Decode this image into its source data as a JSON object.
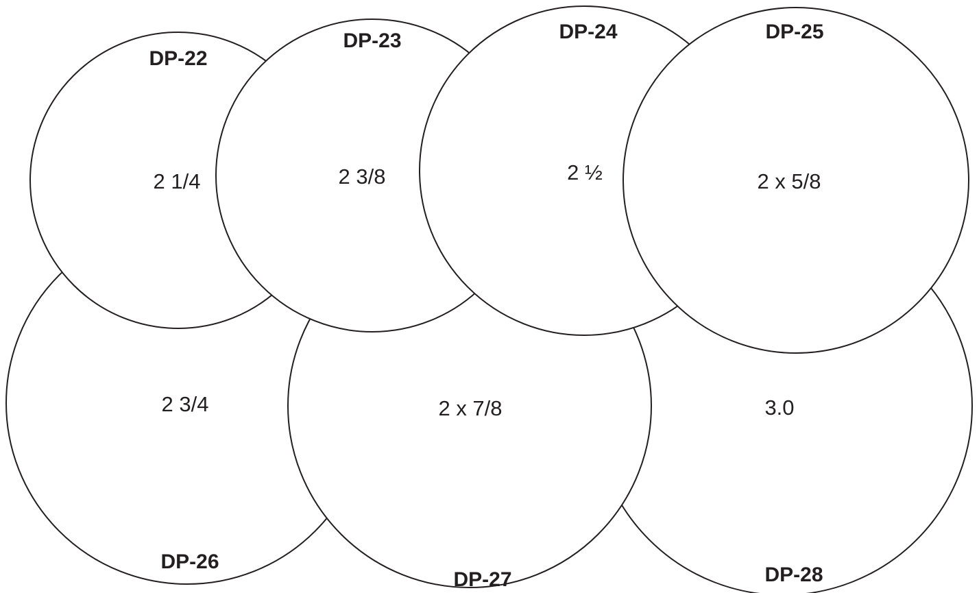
{
  "diagram": {
    "items": [
      {
        "code": "DP-22",
        "size": "2 1/4"
      },
      {
        "code": "DP-23",
        "size": "2 3/8"
      },
      {
        "code": "DP-24",
        "size": "2 ½"
      },
      {
        "code": "DP-25",
        "size": "2 x 5/8"
      },
      {
        "code": "DP-26",
        "size": "2 3/4"
      },
      {
        "code": "DP-27",
        "size": "2 x 7/8"
      },
      {
        "code": "DP-28",
        "size": "3.0"
      }
    ]
  }
}
